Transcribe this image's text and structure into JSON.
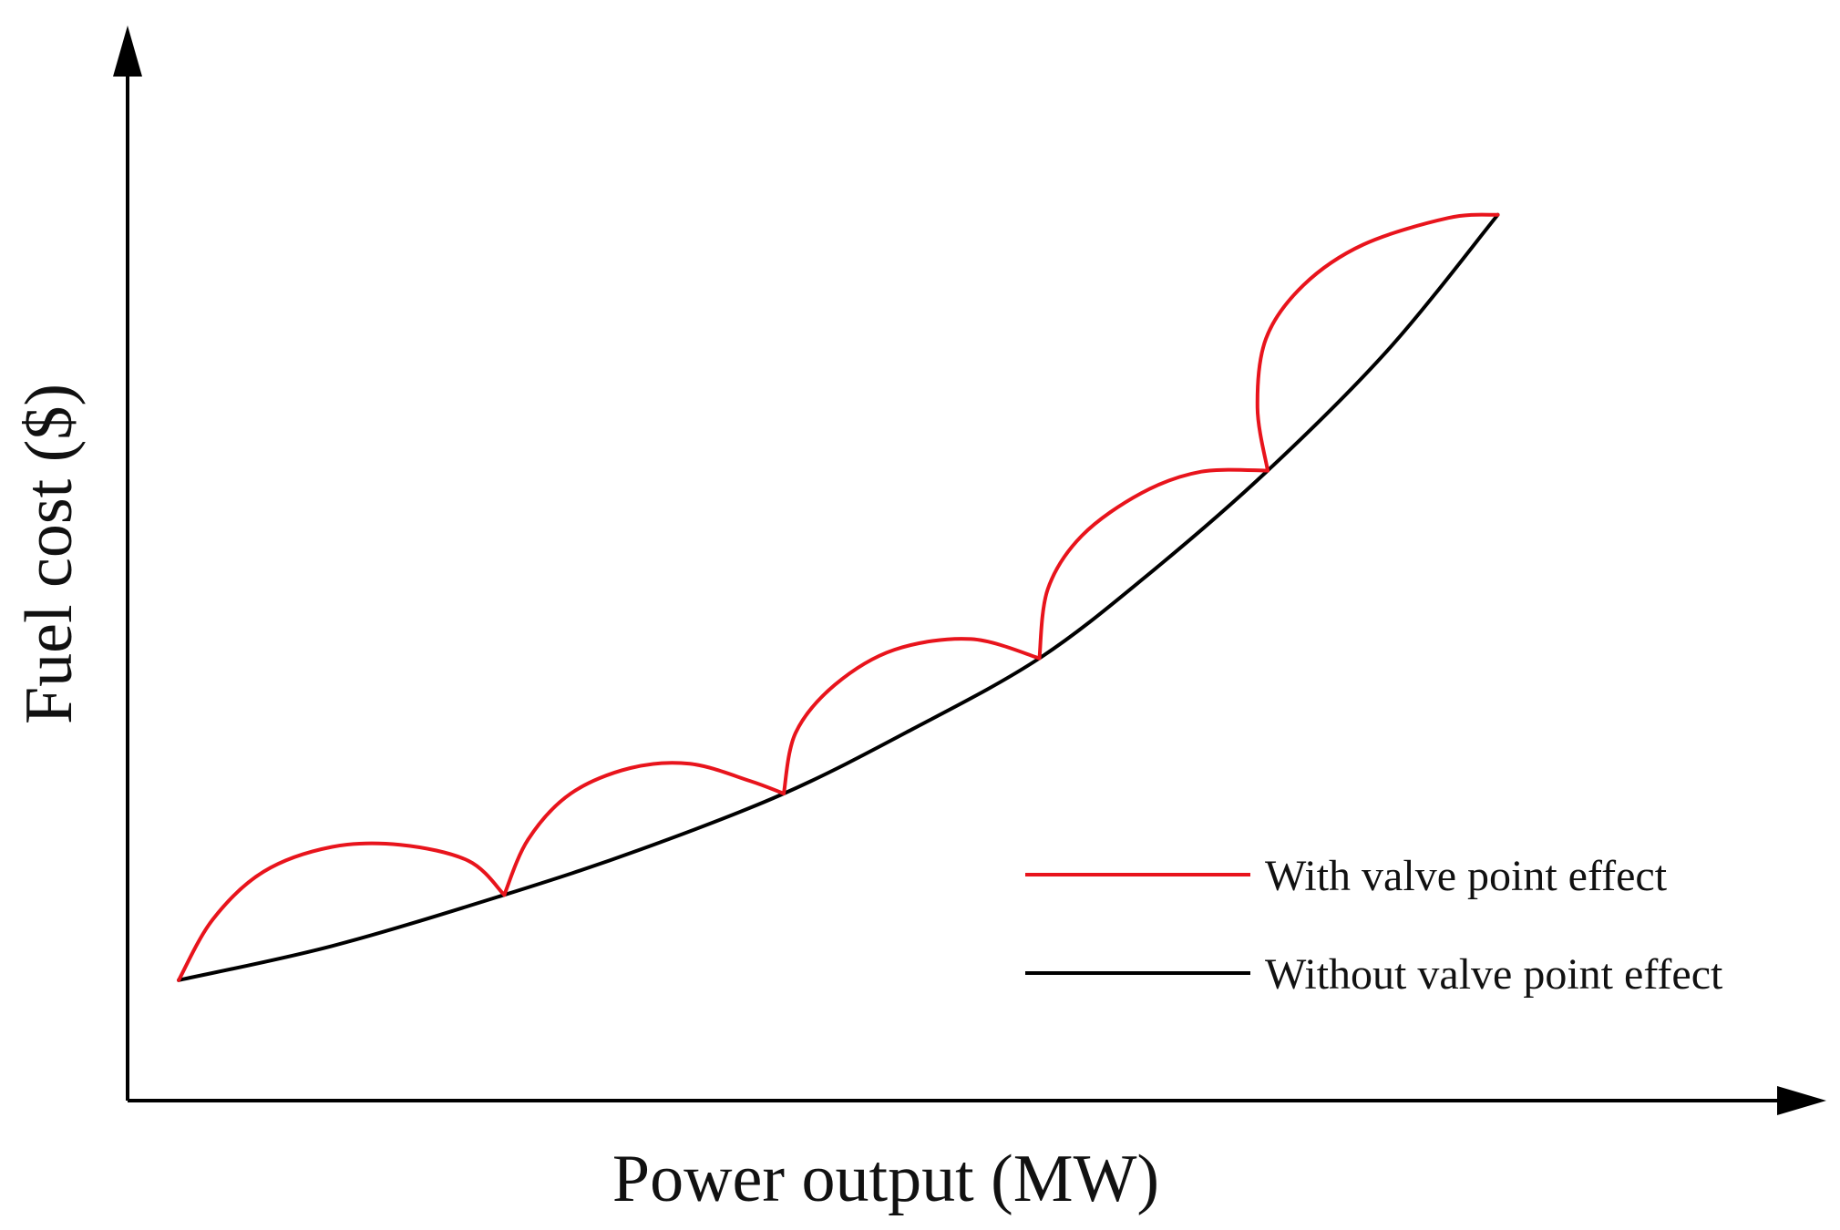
{
  "chart_data": {
    "type": "line",
    "xlabel": "Power output (MW)",
    "ylabel": "Fuel cost ($)",
    "x_ticks": false,
    "y_ticks": false,
    "grid": false,
    "legend_position": "right, near bottom of plot",
    "xlim": [
      0,
      100
    ],
    "ylim": [
      0,
      100
    ],
    "series": [
      {
        "name": "With valve point effect",
        "color": "#e8141c",
        "segments": [
          [
            [
              3,
              11.3
            ],
            [
              5,
              17
            ],
            [
              8,
              21.5
            ],
            [
              12,
              23.8
            ],
            [
              16,
              24
            ],
            [
              20,
              22.5
            ],
            [
              22.1,
              19.3
            ]
          ],
          [
            [
              22.1,
              19.3
            ],
            [
              23.5,
              24.5
            ],
            [
              26,
              28.8
            ],
            [
              29.5,
              31.2
            ],
            [
              33,
              31.6
            ],
            [
              36.5,
              30
            ],
            [
              38.5,
              28.8
            ]
          ],
          [
            [
              38.5,
              28.8
            ],
            [
              39.2,
              34.5
            ],
            [
              41.5,
              39
            ],
            [
              45,
              42.3
            ],
            [
              49.5,
              43.3
            ],
            [
              53.5,
              41.5
            ]
          ],
          [
            [
              53.5,
              41.5
            ],
            [
              54,
              48
            ],
            [
              56,
              53
            ],
            [
              59.5,
              57
            ],
            [
              63,
              59
            ],
            [
              66.9,
              59.1
            ]
          ],
          [
            [
              66.9,
              59.1
            ],
            [
              66.3,
              65
            ],
            [
              66.8,
              71.5
            ],
            [
              69,
              76.5
            ],
            [
              72.5,
              80.3
            ],
            [
              77.5,
              82.8
            ],
            [
              80.4,
              83.1
            ]
          ]
        ]
      },
      {
        "name": "Without valve point effect",
        "color": "#000000",
        "x": [
          3,
          12,
          22.1,
          30,
          38.5,
          46,
          53.5,
          60,
          66.9,
          74,
          80.4
        ],
        "y": [
          11.3,
          14.5,
          19.3,
          23.5,
          28.8,
          34.8,
          41.5,
          49.5,
          59.1,
          70.5,
          83.1
        ]
      }
    ]
  }
}
